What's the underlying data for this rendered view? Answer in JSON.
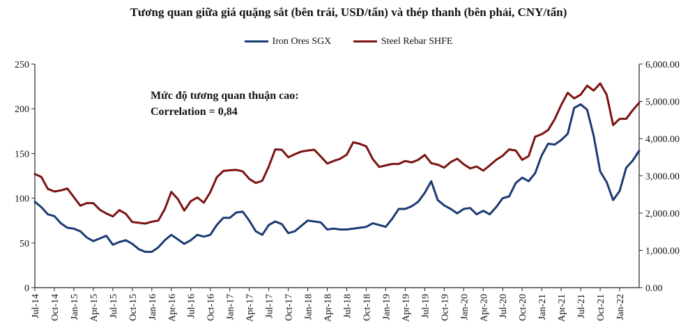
{
  "chart_data": {
    "type": "line",
    "title": "Tương quan  giữa giá quặng  sắt (bên trái, USD/tấn) và thép thanh  (bên phải, CNY/tấn)",
    "x_tick_labels": [
      "Jul-14",
      "Oct-14",
      "Jan-15",
      "Apr-15",
      "Jul-15",
      "Oct-15",
      "Jan-16",
      "Apr-16",
      "Jul-16",
      "Oct-16",
      "Jan-17",
      "Apr-17",
      "Jul-17",
      "Oct-17",
      "Jan-18",
      "Apr-18",
      "Jul-18",
      "Oct-18",
      "Jan-19",
      "Apr-19",
      "Jul-19",
      "Oct-19",
      "Jan-20",
      "Apr-20",
      "Jul-20",
      "Oct-20",
      "Jan-21",
      "Apr-21",
      "Jul-21",
      "Oct-21",
      "Jan-22"
    ],
    "y_left": {
      "min": 0,
      "max": 250,
      "ticks": [
        0,
        50,
        100,
        150,
        200,
        250
      ],
      "tick_labels": [
        "0",
        "50",
        "100",
        "150",
        "200",
        "250"
      ]
    },
    "y_right": {
      "min": 0,
      "max": 6000,
      "ticks": [
        0,
        1000,
        2000,
        3000,
        4000,
        5000,
        6000
      ],
      "tick_labels": [
        "0.00",
        "1,000.00",
        "2,000.00",
        "3,000.00",
        "4,000.00",
        "5,000.00",
        "6,000.00"
      ]
    },
    "annotation": {
      "line1": "Mức độ tương quan thuận cao:",
      "line2": "Correlation = 0,84"
    },
    "series": [
      {
        "name": "Iron Ores SGX",
        "axis": "left",
        "color": "#1a3a73",
        "values": [
          96,
          90,
          82,
          80,
          72,
          67,
          66,
          63,
          56,
          52,
          55,
          58,
          48,
          51,
          53,
          49,
          43,
          40,
          40,
          45,
          53,
          59,
          54,
          49,
          53,
          59,
          57,
          59,
          70,
          78,
          78,
          84,
          85,
          75,
          63,
          59,
          70,
          74,
          71,
          61,
          63,
          69,
          75,
          74,
          73,
          65,
          66,
          65,
          65,
          66,
          67,
          68,
          72,
          70,
          68,
          77,
          88,
          88,
          91,
          96,
          106,
          119,
          98,
          92,
          88,
          83,
          88,
          89,
          82,
          86,
          82,
          90,
          100,
          102,
          117,
          123,
          119,
          128,
          148,
          161,
          160,
          165,
          172,
          201,
          205,
          199,
          170,
          130,
          118,
          98,
          108,
          134,
          142,
          153
        ]
      },
      {
        "name": "Steel Rebar SHFE",
        "axis": "right",
        "color": "#7b1212",
        "values": [
          3050,
          2970,
          2650,
          2580,
          2610,
          2660,
          2430,
          2200,
          2270,
          2270,
          2090,
          1990,
          1910,
          2080,
          1980,
          1760,
          1740,
          1720,
          1770,
          1800,
          2110,
          2570,
          2380,
          2070,
          2320,
          2420,
          2280,
          2560,
          2960,
          3130,
          3150,
          3160,
          3120,
          2920,
          2810,
          2870,
          3250,
          3710,
          3700,
          3500,
          3580,
          3650,
          3680,
          3700,
          3520,
          3330,
          3400,
          3460,
          3570,
          3900,
          3860,
          3790,
          3450,
          3240,
          3280,
          3320,
          3320,
          3400,
          3360,
          3430,
          3560,
          3340,
          3300,
          3220,
          3370,
          3460,
          3310,
          3200,
          3250,
          3140,
          3280,
          3430,
          3540,
          3710,
          3680,
          3430,
          3530,
          4050,
          4120,
          4230,
          4520,
          4900,
          5230,
          5080,
          5180,
          5420,
          5290,
          5480,
          5180,
          4360,
          4530,
          4530,
          4760,
          4960
        ]
      }
    ]
  }
}
